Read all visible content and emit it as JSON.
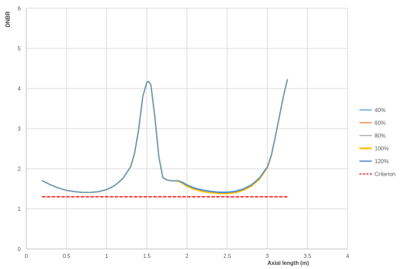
{
  "chart_data": {
    "type": "line",
    "title": "",
    "xlabel": "Axial length (m)",
    "ylabel": "DNBR",
    "xlim": [
      0,
      4
    ],
    "ylim": [
      0,
      6
    ],
    "x_ticks": [
      "0",
      "0.5",
      "1",
      "1.5",
      "2",
      "2.5",
      "3",
      "3.5",
      "4"
    ],
    "y_ticks": [
      "0",
      "1",
      "2",
      "3",
      "4",
      "5",
      "6"
    ],
    "grid": true,
    "legend_position": "right",
    "series": [
      {
        "name": "40%",
        "color": "#5B9BD5",
        "x": [
          0.2,
          0.3,
          0.4,
          0.5,
          0.6,
          0.7,
          0.8,
          0.9,
          1.0,
          1.1,
          1.2,
          1.3,
          1.35,
          1.4,
          1.45,
          1.5,
          1.52,
          1.55,
          1.6,
          1.65,
          1.7,
          1.75,
          1.8,
          1.85,
          1.9,
          1.95,
          2.0,
          2.1,
          2.2,
          2.3,
          2.4,
          2.5,
          2.6,
          2.7,
          2.8,
          2.9,
          3.0,
          3.05,
          3.1,
          3.15,
          3.2,
          3.25
        ],
        "y": [
          1.7,
          1.6,
          1.52,
          1.46,
          1.43,
          1.41,
          1.41,
          1.43,
          1.48,
          1.58,
          1.75,
          2.05,
          2.4,
          3.0,
          3.8,
          4.15,
          4.18,
          4.1,
          3.3,
          2.3,
          1.78,
          1.72,
          1.7,
          1.7,
          1.7,
          1.66,
          1.6,
          1.52,
          1.47,
          1.44,
          1.42,
          1.42,
          1.44,
          1.5,
          1.6,
          1.77,
          2.05,
          2.35,
          2.8,
          3.3,
          3.8,
          4.22
        ]
      },
      {
        "name": "60%",
        "color": "#ED7D31",
        "x": [
          0.2,
          0.3,
          0.4,
          0.5,
          0.6,
          0.7,
          0.8,
          0.9,
          1.0,
          1.1,
          1.2,
          1.3,
          1.35,
          1.4,
          1.45,
          1.5,
          1.52,
          1.55,
          1.6,
          1.65,
          1.7,
          1.75,
          1.8,
          1.85,
          1.9,
          1.95,
          2.0,
          2.1,
          2.2,
          2.3,
          2.4,
          2.5,
          2.6,
          2.7,
          2.8,
          2.9,
          3.0,
          3.05,
          3.1,
          3.15,
          3.2,
          3.25
        ],
        "y": [
          1.7,
          1.6,
          1.52,
          1.46,
          1.43,
          1.41,
          1.41,
          1.43,
          1.48,
          1.58,
          1.75,
          2.05,
          2.4,
          3.0,
          3.8,
          4.15,
          4.18,
          4.1,
          3.3,
          2.3,
          1.78,
          1.72,
          1.7,
          1.7,
          1.69,
          1.64,
          1.58,
          1.5,
          1.45,
          1.42,
          1.4,
          1.4,
          1.42,
          1.48,
          1.58,
          1.75,
          2.04,
          2.34,
          2.8,
          3.3,
          3.8,
          4.22
        ]
      },
      {
        "name": "80%",
        "color": "#A5A5A5",
        "x": [
          0.2,
          0.3,
          0.4,
          0.5,
          0.6,
          0.7,
          0.8,
          0.9,
          1.0,
          1.1,
          1.2,
          1.3,
          1.35,
          1.4,
          1.45,
          1.5,
          1.52,
          1.55,
          1.6,
          1.65,
          1.7,
          1.75,
          1.8,
          1.85,
          1.9,
          1.95,
          2.0,
          2.1,
          2.2,
          2.3,
          2.4,
          2.5,
          2.6,
          2.7,
          2.8,
          2.9,
          3.0,
          3.05,
          3.1,
          3.15,
          3.2,
          3.25
        ],
        "y": [
          1.7,
          1.6,
          1.52,
          1.46,
          1.43,
          1.41,
          1.41,
          1.43,
          1.48,
          1.58,
          1.75,
          2.05,
          2.4,
          3.0,
          3.8,
          4.15,
          4.18,
          4.1,
          3.3,
          2.3,
          1.78,
          1.72,
          1.7,
          1.7,
          1.69,
          1.64,
          1.57,
          1.49,
          1.44,
          1.41,
          1.39,
          1.39,
          1.41,
          1.47,
          1.57,
          1.74,
          2.03,
          2.33,
          2.8,
          3.3,
          3.8,
          4.22
        ]
      },
      {
        "name": "100%",
        "color": "#FFC000",
        "x": [
          0.2,
          0.3,
          0.4,
          0.5,
          0.6,
          0.7,
          0.8,
          0.9,
          1.0,
          1.1,
          1.2,
          1.3,
          1.35,
          1.4,
          1.45,
          1.5,
          1.52,
          1.55,
          1.6,
          1.65,
          1.7,
          1.75,
          1.8,
          1.85,
          1.9,
          1.95,
          2.0,
          2.1,
          2.2,
          2.3,
          2.4,
          2.5,
          2.6,
          2.7,
          2.8,
          2.9,
          3.0,
          3.05,
          3.1,
          3.15,
          3.2,
          3.25
        ],
        "y": [
          1.7,
          1.6,
          1.52,
          1.46,
          1.43,
          1.41,
          1.41,
          1.43,
          1.48,
          1.58,
          1.75,
          2.05,
          2.4,
          3.0,
          3.8,
          4.15,
          4.18,
          4.1,
          3.3,
          2.3,
          1.78,
          1.72,
          1.7,
          1.7,
          1.68,
          1.63,
          1.56,
          1.48,
          1.43,
          1.4,
          1.38,
          1.38,
          1.4,
          1.46,
          1.56,
          1.73,
          2.02,
          2.32,
          2.8,
          3.3,
          3.8,
          4.22
        ]
      },
      {
        "name": "120%",
        "color": "#4472C4",
        "x": [
          0.2,
          0.3,
          0.4,
          0.5,
          0.6,
          0.7,
          0.8,
          0.9,
          1.0,
          1.1,
          1.2,
          1.3,
          1.35,
          1.4,
          1.45,
          1.5,
          1.52,
          1.55,
          1.6,
          1.65,
          1.7,
          1.75,
          1.8,
          1.85,
          1.9,
          1.95,
          2.0,
          2.1,
          2.2,
          2.3,
          2.4,
          2.5,
          2.6,
          2.7,
          2.8,
          2.9,
          3.0,
          3.05,
          3.1,
          3.15,
          3.2,
          3.25
        ],
        "y": [
          1.7,
          1.6,
          1.52,
          1.46,
          1.43,
          1.41,
          1.41,
          1.43,
          1.48,
          1.58,
          1.75,
          2.05,
          2.4,
          3.0,
          3.8,
          4.15,
          4.18,
          4.1,
          3.3,
          2.3,
          1.78,
          1.72,
          1.7,
          1.7,
          1.7,
          1.65,
          1.59,
          1.51,
          1.46,
          1.43,
          1.41,
          1.41,
          1.43,
          1.49,
          1.59,
          1.76,
          2.04,
          2.34,
          2.8,
          3.3,
          3.8,
          4.22
        ]
      },
      {
        "name": "Criterion",
        "color": "#FF0000",
        "dashed": true,
        "x": [
          0.2,
          3.25
        ],
        "y": [
          1.3,
          1.3
        ]
      }
    ]
  }
}
